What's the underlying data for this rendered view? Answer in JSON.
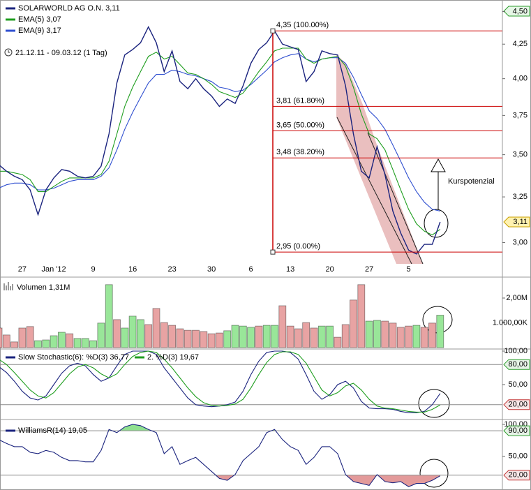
{
  "chart_data": [
    {
      "type": "line",
      "subtitle": "21.12.11 - 09.03.12 (1 Tag)",
      "log": true,
      "categories": [
        null,
        null,
        null,
        "27",
        null,
        null,
        null,
        "Jan '12",
        null,
        null,
        null,
        null,
        "9",
        null,
        null,
        null,
        null,
        "16",
        null,
        null,
        null,
        null,
        "23",
        null,
        null,
        null,
        null,
        "30",
        null,
        null,
        null,
        null,
        "6",
        null,
        null,
        null,
        null,
        "13",
        null,
        null,
        null,
        null,
        "20",
        null,
        null,
        null,
        null,
        "27",
        null,
        null,
        null,
        null,
        "5",
        null,
        null,
        null,
        null
      ],
      "ylim": [
        2.83,
        4.57
      ],
      "yticks": [
        {
          "value": 4.5,
          "label": "4,50"
        },
        {
          "value": 4.25,
          "label": "4,25"
        },
        {
          "value": 4.0,
          "label": "4,00"
        },
        {
          "value": 3.75,
          "label": "3,75"
        },
        {
          "value": 3.5,
          "label": "3,50"
        },
        {
          "value": 3.25,
          "label": "3,25"
        },
        {
          "value": 3.0,
          "label": "3,00"
        }
      ],
      "series": [
        {
          "name": "EMA(9) 3,17",
          "color": "#2f4fd0",
          "values": [
            3.3,
            3.32,
            3.33,
            3.33,
            3.32,
            3.29,
            3.29,
            3.3,
            3.32,
            3.34,
            3.35,
            3.35,
            3.35,
            3.37,
            3.42,
            3.53,
            3.66,
            3.77,
            3.87,
            3.97,
            4.03,
            4.03,
            4.06,
            4.05,
            4.03,
            4.02,
            4.0,
            3.98,
            3.94,
            3.93,
            3.91,
            3.92,
            3.96,
            4.01,
            4.06,
            4.12,
            4.15,
            4.17,
            4.18,
            4.14,
            4.12,
            4.14,
            4.15,
            4.15,
            4.11,
            4.01,
            3.89,
            3.78,
            3.73,
            3.66,
            3.56,
            3.46,
            3.36,
            3.28,
            3.22,
            3.18,
            3.17
          ]
        },
        {
          "name": "EMA(5) 3,07",
          "color": "#1f9e1f",
          "values": [
            3.4,
            3.4,
            3.39,
            3.38,
            3.35,
            3.28,
            3.28,
            3.31,
            3.34,
            3.36,
            3.36,
            3.36,
            3.36,
            3.38,
            3.46,
            3.63,
            3.81,
            3.94,
            4.05,
            4.16,
            4.19,
            4.14,
            4.16,
            4.1,
            4.04,
            4.03,
            4.0,
            3.96,
            3.91,
            3.89,
            3.87,
            3.9,
            3.97,
            4.05,
            4.12,
            4.2,
            4.22,
            4.22,
            4.22,
            4.14,
            4.11,
            4.14,
            4.15,
            4.16,
            4.09,
            3.94,
            3.76,
            3.63,
            3.6,
            3.53,
            3.41,
            3.29,
            3.18,
            3.1,
            3.06,
            3.04,
            3.07
          ]
        },
        {
          "name": "SOLARWORLD AG O.N. 3,11",
          "color": "#1a237e",
          "values": [
            3.44,
            3.4,
            3.37,
            3.35,
            3.29,
            3.15,
            3.29,
            3.36,
            3.41,
            3.4,
            3.37,
            3.36,
            3.37,
            3.43,
            3.63,
            3.97,
            4.17,
            4.21,
            4.26,
            4.38,
            4.26,
            4.05,
            4.2,
            3.98,
            3.93,
            4.0,
            3.93,
            3.88,
            3.81,
            3.86,
            3.83,
            3.95,
            4.11,
            4.21,
            4.26,
            4.35,
            4.25,
            4.23,
            4.21,
            3.98,
            4.05,
            4.2,
            4.18,
            4.17,
            3.95,
            3.63,
            3.4,
            3.36,
            3.55,
            3.38,
            3.17,
            3.05,
            2.96,
            2.94,
            2.99,
            2.99,
            3.11
          ]
        }
      ],
      "fibonacci": [
        {
          "value": 4.35,
          "label": "4,35 (100.00%)"
        },
        {
          "value": 3.81,
          "label": "3,81 (61.80%)"
        },
        {
          "value": 3.65,
          "label": "3,65 (50.00%)"
        },
        {
          "value": 3.48,
          "label": "3,48 (38.20%)"
        },
        {
          "value": 2.95,
          "label": "2,95 (0.00%)"
        }
      ],
      "fibonacci_color": "#cc0000",
      "last_price": {
        "value": 3.11,
        "label": "3,11"
      },
      "annotation": "Kurspotenzial"
    },
    {
      "type": "bar",
      "ylim": [
        0,
        2760000
      ],
      "yticks": [
        {
          "value": 2000000,
          "label": "2,00M"
        },
        {
          "value": 1000000,
          "label": "1.000,00K"
        }
      ],
      "series": [
        {
          "name": "Volumen 1,31M",
          "values": [
            790000,
            510000,
            230000,
            790000,
            850000,
            280000,
            310000,
            480000,
            620000,
            560000,
            370000,
            370000,
            280000,
            990000,
            2540000,
            1130000,
            790000,
            1270000,
            1130000,
            930000,
            1580000,
            1010000,
            900000,
            760000,
            700000,
            700000,
            650000,
            560000,
            590000,
            680000,
            900000,
            870000,
            820000,
            870000,
            900000,
            900000,
            1690000,
            870000,
            760000,
            1010000,
            790000,
            870000,
            870000,
            420000,
            930000,
            1920000,
            2540000,
            1070000,
            1100000,
            1070000,
            990000,
            820000,
            870000,
            900000,
            820000,
            990000,
            1310000
          ],
          "colors": [
            "#e8a3a3",
            "#e8a3a3",
            "#e8a3a3",
            "#e8a3a3",
            "#e8a3a3",
            "#99e699",
            "#99e699",
            "#99e699",
            "#99e699",
            "#e8a3a3",
            "#99e699",
            "#99e699",
            "#99e699",
            "#99e699",
            "#99e699",
            "#e8a3a3",
            "#99e699",
            "#99e699",
            "#99e699",
            "#e8a3a3",
            "#e8a3a3",
            "#e8a3a3",
            "#e8a3a3",
            "#e8a3a3",
            "#e8a3a3",
            "#e8a3a3",
            "#e8a3a3",
            "#e8a3a3",
            "#e8a3a3",
            "#99e699",
            "#99e699",
            "#99e699",
            "#99e699",
            "#e8a3a3",
            "#99e699",
            "#99e699",
            "#e8a3a3",
            "#e8a3a3",
            "#e8a3a3",
            "#e8a3a3",
            "#e8a3a3",
            "#99e699",
            "#99e699",
            "#e8a3a3",
            "#e8a3a3",
            "#e8a3a3",
            "#e8a3a3",
            "#99e699",
            "#99e699",
            "#e8a3a3",
            "#e8a3a3",
            "#e8a3a3",
            "#e8a3a3",
            "#99e699",
            "#e8a3a3",
            "#e8a3a3",
            "#99e699"
          ]
        }
      ]
    },
    {
      "type": "line",
      "ylim": [
        0,
        100
      ],
      "yticks": [
        {
          "value": 100,
          "label": "100,00"
        },
        {
          "value": 50,
          "label": "50,00"
        }
      ],
      "levels": [
        {
          "value": 80,
          "label": "80,00",
          "color": "#2e9e2e"
        },
        {
          "value": 20,
          "label": "20,00",
          "color": "#c03030"
        }
      ],
      "series": [
        {
          "name": "Slow Stochastic(6): %D(3) 36,77",
          "color": "#1a237e",
          "values": [
            77,
            68,
            55,
            40,
            30,
            27,
            33,
            50,
            67,
            78,
            82,
            78,
            65,
            55,
            60,
            78,
            95,
            100,
            100,
            100,
            95,
            75,
            60,
            45,
            30,
            20,
            18,
            17,
            18,
            20,
            24,
            40,
            65,
            85,
            98,
            100,
            100,
            98,
            88,
            65,
            40,
            28,
            35,
            50,
            55,
            45,
            25,
            15,
            14,
            14,
            13,
            10,
            8,
            8,
            10,
            20,
            36.77
          ]
        },
        {
          "name": "2. %D(3) 19,67",
          "color": "#1f9e1f",
          "values": [
            88,
            80,
            68,
            55,
            42,
            33,
            30,
            38,
            52,
            66,
            76,
            80,
            75,
            66,
            60,
            66,
            80,
            92,
            98,
            100,
            98,
            88,
            75,
            60,
            45,
            32,
            23,
            19,
            18,
            19,
            21,
            28,
            45,
            65,
            83,
            95,
            99,
            99,
            95,
            82,
            62,
            42,
            33,
            38,
            48,
            52,
            42,
            28,
            18,
            15,
            14,
            12,
            10,
            9,
            9,
            13,
            19.67
          ]
        }
      ]
    },
    {
      "type": "line",
      "ylim": [
        0,
        100
      ],
      "yticks": [
        {
          "value": 100,
          "label": "100,00"
        },
        {
          "value": 50,
          "label": "50,00"
        }
      ],
      "levels": [
        {
          "value": 90,
          "label": "90,00",
          "color": "#2e9e2e",
          "fill": "#8fe08f",
          "side": "above"
        },
        {
          "value": 20,
          "label": "20,00",
          "color": "#c03030",
          "fill": "#e39a9a",
          "side": "below"
        }
      ],
      "series": [
        {
          "name": "WilliamsR(14) 19,05",
          "color": "#1a237e",
          "values": [
            76,
            70,
            65,
            65,
            56,
            54,
            59,
            56,
            48,
            43,
            43,
            41,
            41,
            59,
            92,
            87,
            96,
            100,
            98,
            92,
            87,
            54,
            65,
            37,
            43,
            48,
            37,
            26,
            15,
            12,
            21,
            43,
            54,
            65,
            87,
            92,
            76,
            65,
            59,
            37,
            48,
            65,
            65,
            54,
            21,
            10,
            7,
            4,
            21,
            10,
            8,
            10,
            2,
            7,
            7,
            12,
            19.05
          ]
        }
      ]
    }
  ]
}
